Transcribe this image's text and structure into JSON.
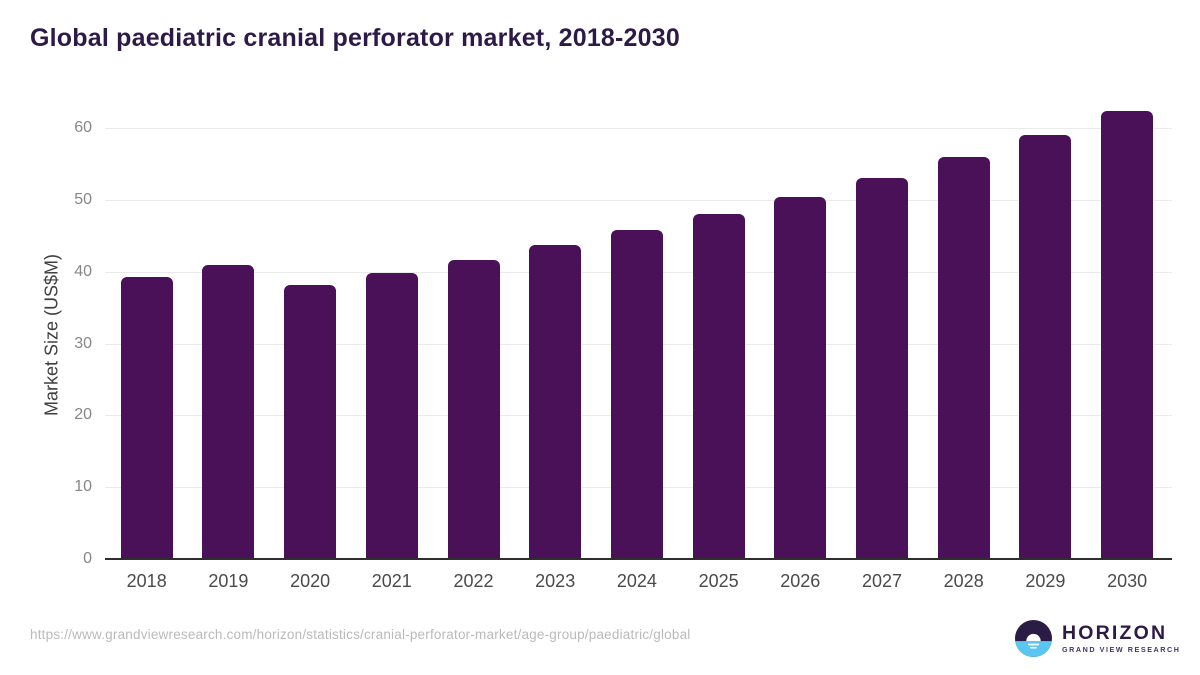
{
  "header": {
    "title": "Global paediatric cranial perforator market, 2018-2030"
  },
  "chart_data": {
    "type": "bar",
    "title": "Global paediatric cranial perforator market, 2018-2030",
    "categories": [
      "2018",
      "2019",
      "2020",
      "2021",
      "2022",
      "2023",
      "2024",
      "2025",
      "2026",
      "2027",
      "2028",
      "2029",
      "2030"
    ],
    "values": [
      39.3,
      41.0,
      38.2,
      39.9,
      41.7,
      43.7,
      45.8,
      48.0,
      50.4,
      53.0,
      56.0,
      59.0,
      62.4
    ],
    "xlabel": "",
    "ylabel": "Market Size (US$M)",
    "ylim": [
      0,
      65
    ],
    "yticks": [
      0,
      10,
      20,
      30,
      40,
      50,
      60
    ],
    "grid": true,
    "legend": "none",
    "bar_color": "#4A1158"
  },
  "footer": {
    "source_url": "https://www.grandviewresearch.com/horizon/statistics/cranial-perforator-market/age-group/paediatric/global",
    "logo": {
      "name": "HORIZON",
      "subtitle": "GRAND VIEW RESEARCH",
      "icon": "horizon-sun-icon",
      "icon_dark_color": "#2B1C45",
      "icon_blue_color": "#5AC6F1"
    }
  },
  "colors": {
    "title_text": "#2E1A47",
    "bar": "#4A1158",
    "x_labels": "#4A4A4A",
    "y_labels": "#878787",
    "gridline": "#EAEAEA",
    "axis_line": "#2E2E2E",
    "footer_url": "#BABABA"
  }
}
